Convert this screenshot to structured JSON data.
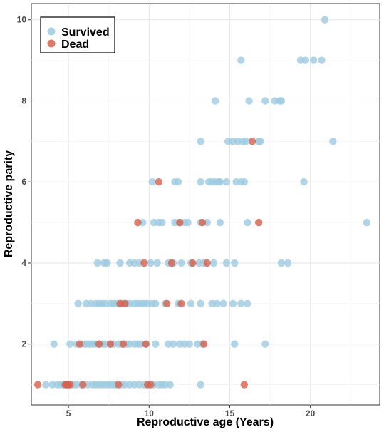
{
  "chart_data": {
    "type": "scatter",
    "xlabel": "Reproductive age (Years)",
    "ylabel": "Reproductive parity",
    "xlim": [
      2.7,
      24.3
    ],
    "ylim": [
      0.5,
      10.4
    ],
    "x_ticks": [
      5,
      10,
      15,
      20
    ],
    "y_ticks": [
      2,
      4,
      6,
      8,
      10
    ],
    "grid": true,
    "legend_position": "top-left",
    "series": [
      {
        "name": "Survived",
        "color": "#9ecae1",
        "points": [
          [
            20.9,
            10
          ],
          [
            15.7,
            9
          ],
          [
            19.4,
            9
          ],
          [
            19.7,
            9
          ],
          [
            20.2,
            9
          ],
          [
            20.7,
            9
          ],
          [
            14.1,
            8
          ],
          [
            16.2,
            8
          ],
          [
            17.2,
            8
          ],
          [
            17.8,
            8
          ],
          [
            18.1,
            8
          ],
          [
            18.2,
            8
          ],
          [
            13.2,
            7
          ],
          [
            14.9,
            7
          ],
          [
            15.2,
            7
          ],
          [
            15.5,
            7
          ],
          [
            15.8,
            7
          ],
          [
            16.0,
            7
          ],
          [
            16.8,
            7
          ],
          [
            16.9,
            7
          ],
          [
            21.4,
            7
          ],
          [
            10.2,
            6
          ],
          [
            11.6,
            6
          ],
          [
            11.8,
            6
          ],
          [
            13.2,
            6
          ],
          [
            13.7,
            6
          ],
          [
            13.9,
            6
          ],
          [
            14.1,
            6
          ],
          [
            14.3,
            6
          ],
          [
            14.4,
            6
          ],
          [
            14.8,
            6
          ],
          [
            15.4,
            6
          ],
          [
            15.7,
            6
          ],
          [
            15.9,
            6
          ],
          [
            19.6,
            6
          ],
          [
            9.6,
            5
          ],
          [
            10.3,
            5
          ],
          [
            10.6,
            5
          ],
          [
            10.8,
            5
          ],
          [
            11.6,
            5
          ],
          [
            11.9,
            5
          ],
          [
            12.2,
            5
          ],
          [
            12.4,
            5
          ],
          [
            13.2,
            5
          ],
          [
            13.6,
            5
          ],
          [
            14.4,
            5
          ],
          [
            16.1,
            5
          ],
          [
            23.5,
            5
          ],
          [
            6.8,
            4
          ],
          [
            7.2,
            4
          ],
          [
            7.4,
            4
          ],
          [
            8.2,
            4
          ],
          [
            8.8,
            4
          ],
          [
            9.1,
            4
          ],
          [
            9.4,
            4
          ],
          [
            10.1,
            4
          ],
          [
            10.5,
            4
          ],
          [
            11.2,
            4
          ],
          [
            11.5,
            4
          ],
          [
            12.0,
            4
          ],
          [
            12.6,
            4
          ],
          [
            13.1,
            4
          ],
          [
            13.4,
            4
          ],
          [
            14.0,
            4
          ],
          [
            14.8,
            4
          ],
          [
            15.3,
            4
          ],
          [
            18.2,
            4
          ],
          [
            18.6,
            4
          ],
          [
            5.6,
            3
          ],
          [
            6.1,
            3
          ],
          [
            6.4,
            3
          ],
          [
            6.7,
            3
          ],
          [
            6.9,
            3
          ],
          [
            7.1,
            3
          ],
          [
            7.3,
            3
          ],
          [
            7.6,
            3
          ],
          [
            7.8,
            3
          ],
          [
            8.0,
            3
          ],
          [
            8.3,
            3
          ],
          [
            8.6,
            3
          ],
          [
            8.8,
            3
          ],
          [
            9.1,
            3
          ],
          [
            9.3,
            3
          ],
          [
            9.5,
            3
          ],
          [
            9.7,
            3
          ],
          [
            9.9,
            3
          ],
          [
            10.2,
            3
          ],
          [
            10.4,
            3
          ],
          [
            11.0,
            3
          ],
          [
            11.8,
            3
          ],
          [
            12.6,
            3
          ],
          [
            13.2,
            3
          ],
          [
            13.9,
            3
          ],
          [
            14.2,
            3
          ],
          [
            14.6,
            3
          ],
          [
            15.2,
            3
          ],
          [
            15.7,
            3
          ],
          [
            16.1,
            3
          ],
          [
            4.1,
            2
          ],
          [
            5.1,
            2
          ],
          [
            5.5,
            2
          ],
          [
            5.9,
            2
          ],
          [
            6.1,
            2
          ],
          [
            6.3,
            2
          ],
          [
            6.5,
            2
          ],
          [
            6.7,
            2
          ],
          [
            6.9,
            2
          ],
          [
            7.1,
            2
          ],
          [
            7.3,
            2
          ],
          [
            7.6,
            2
          ],
          [
            7.8,
            2
          ],
          [
            8.1,
            2
          ],
          [
            8.3,
            2
          ],
          [
            8.6,
            2
          ],
          [
            8.8,
            2
          ],
          [
            9.1,
            2
          ],
          [
            9.3,
            2
          ],
          [
            9.5,
            2
          ],
          [
            9.8,
            2
          ],
          [
            10.4,
            2
          ],
          [
            11.2,
            2
          ],
          [
            11.5,
            2
          ],
          [
            11.9,
            2
          ],
          [
            12.2,
            2
          ],
          [
            12.5,
            2
          ],
          [
            13.0,
            2
          ],
          [
            13.3,
            2
          ],
          [
            15.3,
            2
          ],
          [
            17.2,
            2
          ],
          [
            3.6,
            1
          ],
          [
            4.0,
            1
          ],
          [
            4.3,
            1
          ],
          [
            4.5,
            1
          ],
          [
            4.7,
            1
          ],
          [
            5.3,
            1
          ],
          [
            5.5,
            1
          ],
          [
            5.8,
            1
          ],
          [
            6.2,
            1
          ],
          [
            6.5,
            1
          ],
          [
            6.7,
            1
          ],
          [
            6.9,
            1
          ],
          [
            7.1,
            1
          ],
          [
            7.3,
            1
          ],
          [
            7.5,
            1
          ],
          [
            7.7,
            1
          ],
          [
            7.9,
            1
          ],
          [
            8.3,
            1
          ],
          [
            8.5,
            1
          ],
          [
            8.8,
            1
          ],
          [
            9.1,
            1
          ],
          [
            9.4,
            1
          ],
          [
            9.7,
            1
          ],
          [
            10.3,
            1
          ],
          [
            10.6,
            1
          ],
          [
            10.8,
            1
          ],
          [
            11.0,
            1
          ],
          [
            11.3,
            1
          ],
          [
            13.2,
            1
          ]
        ]
      },
      {
        "name": "Dead",
        "color": "#d6604d",
        "points": [
          [
            16.4,
            7
          ],
          [
            10.6,
            6
          ],
          [
            9.3,
            5
          ],
          [
            11.9,
            5
          ],
          [
            13.3,
            5
          ],
          [
            16.8,
            5
          ],
          [
            9.7,
            4
          ],
          [
            11.4,
            4
          ],
          [
            12.7,
            4
          ],
          [
            13.6,
            4
          ],
          [
            8.2,
            3
          ],
          [
            8.5,
            3
          ],
          [
            11.1,
            3
          ],
          [
            12.0,
            3
          ],
          [
            5.7,
            2
          ],
          [
            6.9,
            2
          ],
          [
            7.6,
            2
          ],
          [
            8.4,
            2
          ],
          [
            9.8,
            2
          ],
          [
            13.4,
            2
          ],
          [
            3.1,
            1
          ],
          [
            4.8,
            1
          ],
          [
            4.9,
            1
          ],
          [
            5.0,
            1
          ],
          [
            5.1,
            1
          ],
          [
            5.9,
            1
          ],
          [
            8.1,
            1
          ],
          [
            9.9,
            1
          ],
          [
            10.1,
            1
          ],
          [
            15.9,
            1
          ]
        ]
      }
    ]
  }
}
